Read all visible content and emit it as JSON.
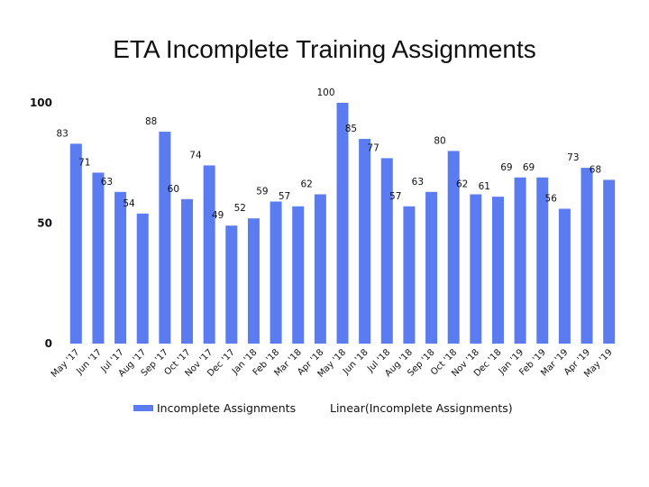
{
  "chart_data": {
    "type": "bar",
    "title": "ETA Incomplete Training Assignments",
    "xlabel": "",
    "ylabel": "",
    "ylim": [
      0,
      100
    ],
    "yticks": [
      "0",
      "50",
      "100"
    ],
    "grid": false,
    "legend_position": "bottom",
    "bar_color": "#5B7CF0",
    "categories": [
      "May '17",
      "Jun '17",
      "Jul '17",
      "Aug '17",
      "Sep '17",
      "Oct '17",
      "Nov '17",
      "Dec '17",
      "Jan '18",
      "Feb '18",
      "Mar '18",
      "Apr '18",
      "May '18",
      "Jun '18",
      "Jul '18",
      "Aug '18",
      "Sep '18",
      "Oct '18",
      "Nov '18",
      "Dec '18",
      "Jan '19",
      "Feb '19",
      "Mar '19",
      "Apr '19",
      "May '19"
    ],
    "series": [
      {
        "name": "Incomplete Assignments",
        "values": [
          83,
          71,
          63,
          54,
          88,
          60,
          74,
          49,
          52,
          59,
          57,
          62,
          100,
          85,
          77,
          57,
          63,
          80,
          62,
          61,
          69,
          69,
          56,
          73,
          68
        ]
      }
    ],
    "legend": [
      "Incomplete Assignments",
      "Linear(Incomplete Assignments)"
    ]
  }
}
